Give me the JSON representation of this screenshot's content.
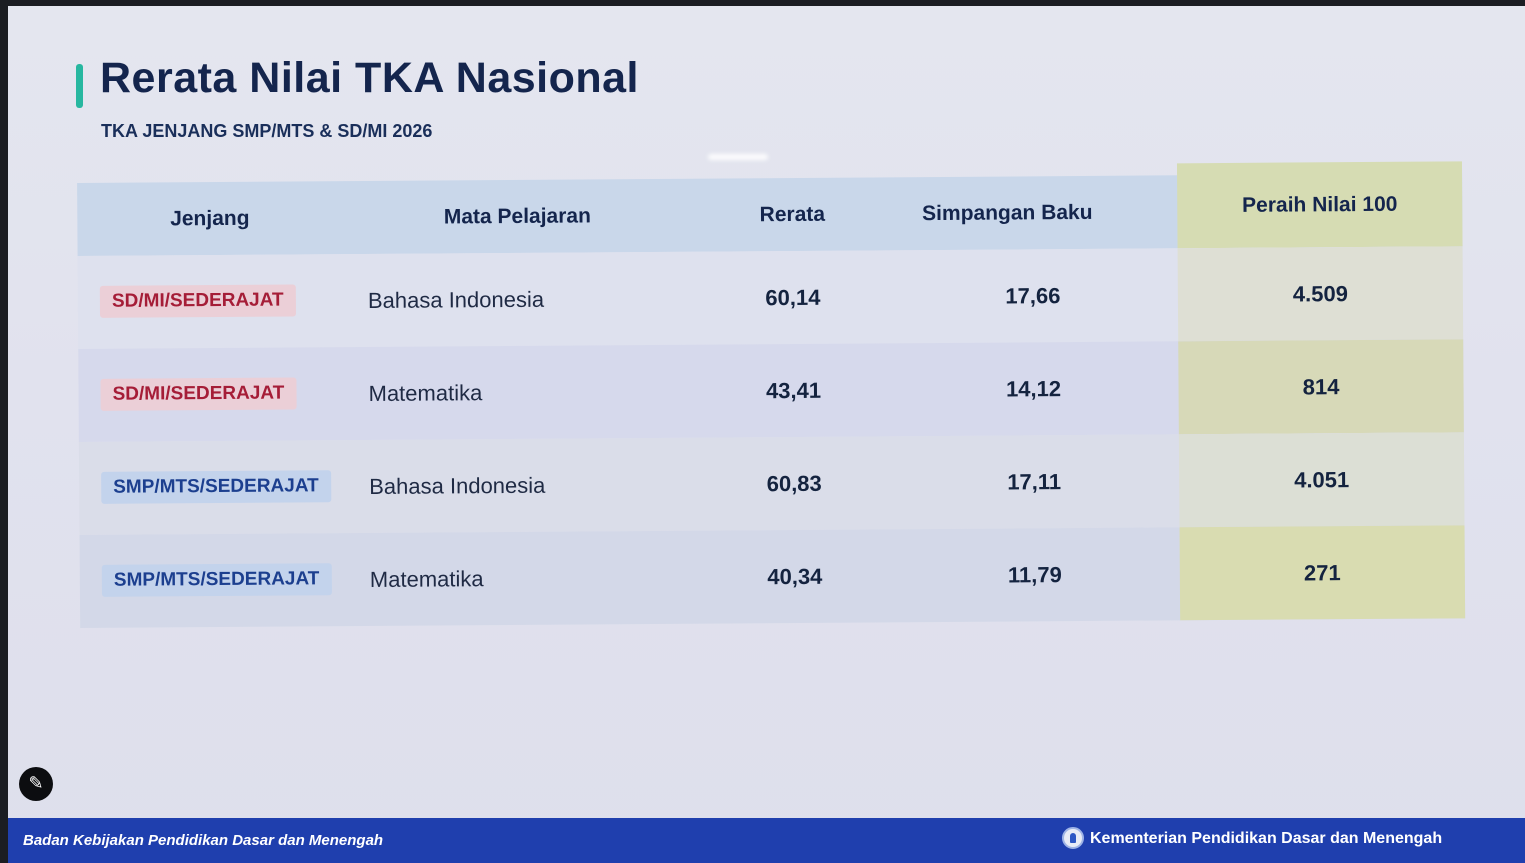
{
  "slide": {
    "title": "Rerata Nilai TKA Nasional",
    "subtitle": "TKA JENJANG SMP/MTS & SD/MI 2026"
  },
  "table": {
    "headers": {
      "jenjang": "Jenjang",
      "mapel": "Mata Pelajaran",
      "rerata": "Rerata",
      "simpangan": "Simpangan Baku",
      "perfect": "Peraih Nilai 100"
    },
    "rows": [
      {
        "jenjang": "SD/MI/SEDERAJAT",
        "mapel": "Bahasa Indonesia",
        "rerata": "60,14",
        "simpangan": "17,66",
        "perfect": "4.509"
      },
      {
        "jenjang": "SD/MI/SEDERAJAT",
        "mapel": "Matematika",
        "rerata": "43,41",
        "simpangan": "14,12",
        "perfect": "814"
      },
      {
        "jenjang": "SMP/MTS/SEDERAJAT",
        "mapel": "Bahasa Indonesia",
        "rerata": "60,83",
        "simpangan": "17,11",
        "perfect": "4.051"
      },
      {
        "jenjang": "SMP/MTS/SEDERAJAT",
        "mapel": "Matematika",
        "rerata": "40,34",
        "simpangan": "11,79",
        "perfect": "271"
      }
    ]
  },
  "footer": {
    "left": "Badan Kebijakan Pendidikan Dasar dan Menengah",
    "right": "Kementerian Pendidikan Dasar dan Menengah"
  },
  "icons": {
    "edit": "pencil-icon",
    "logo": "ministry-logo"
  },
  "colors": {
    "accent": "#27b7a0",
    "title": "#14254d",
    "sd_badge": "#a51d37",
    "smp_badge": "#1c3f8f",
    "highlight_column": "#d6dcb3",
    "footer": "#1f3fae"
  }
}
